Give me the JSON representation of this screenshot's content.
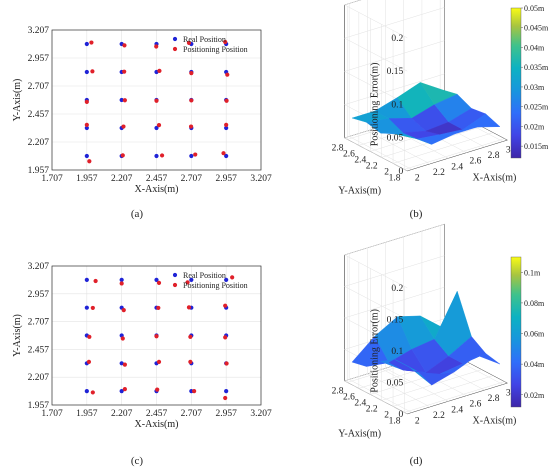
{
  "chart_data": [
    {
      "id": "a",
      "type": "scatter",
      "caption": "(a)",
      "xlabel": "X-Axis(m)",
      "ylabel": "Y-Axis(m)",
      "xlim": [
        1.707,
        3.207
      ],
      "ylim": [
        1.957,
        3.207
      ],
      "xticks": [
        "1.707",
        "1.957",
        "2.207",
        "2.457",
        "2.707",
        "2.957",
        "3.207"
      ],
      "yticks": [
        "1.957",
        "2.207",
        "2.457",
        "2.707",
        "2.957",
        "3.207"
      ],
      "grid": true,
      "legend_position": "top-right",
      "series": [
        {
          "name": "Real Position",
          "color": "#1f23d6",
          "x": [
            1.957,
            2.207,
            2.457,
            2.707,
            2.957,
            1.957,
            2.207,
            2.457,
            2.707,
            2.957,
            1.957,
            2.207,
            2.457,
            2.707,
            2.957,
            1.957,
            2.207,
            2.457,
            2.707,
            2.957,
            1.957,
            2.207,
            2.457,
            2.707,
            2.957
          ],
          "y": [
            2.082,
            2.082,
            2.082,
            2.082,
            2.082,
            2.332,
            2.332,
            2.332,
            2.332,
            2.332,
            2.582,
            2.582,
            2.582,
            2.582,
            2.582,
            2.832,
            2.832,
            2.832,
            2.832,
            2.832,
            3.082,
            3.082,
            3.082,
            3.082,
            3.082
          ]
        },
        {
          "name": "Positioning Position",
          "color": "#e0202a",
          "x": [
            1.975,
            2.215,
            2.497,
            2.735,
            2.938,
            1.957,
            2.22,
            2.475,
            2.705,
            2.957,
            1.957,
            2.23,
            2.457,
            2.707,
            2.96,
            1.997,
            2.225,
            2.478,
            2.707,
            2.965,
            1.99,
            2.227,
            2.455,
            2.69,
            2.95
          ],
          "y": [
            2.035,
            2.088,
            2.087,
            2.095,
            2.107,
            2.36,
            2.345,
            2.358,
            2.345,
            2.36,
            2.565,
            2.58,
            2.575,
            2.578,
            2.575,
            2.838,
            2.835,
            2.842,
            2.822,
            2.808,
            3.095,
            3.07,
            3.06,
            3.092,
            3.1
          ]
        }
      ]
    },
    {
      "id": "b",
      "type": "surface3d",
      "caption": "(b)",
      "xlabel": "X-Axis(m)",
      "ylabel": "Y-Axis(m)",
      "zlabel": "Positioning Error(m)",
      "x": [
        2.0,
        2.25,
        2.5,
        2.75,
        3.0
      ],
      "y": [
        1.8,
        2.05,
        2.3,
        2.55,
        2.8
      ],
      "z": [
        [
          0.048,
          0.025,
          0.03,
          0.03,
          0.02
        ],
        [
          0.04,
          0.022,
          0.018,
          0.015,
          0.028
        ],
        [
          0.03,
          0.02,
          0.012,
          0.015,
          0.025
        ],
        [
          0.035,
          0.03,
          0.02,
          0.03,
          0.035
        ],
        [
          0.03,
          0.03,
          0.04,
          0.052,
          0.03
        ]
      ],
      "zlim": [
        0,
        0.2
      ],
      "xticks": [
        "2",
        "2.2",
        "2.4",
        "2.6",
        "2.8",
        "3"
      ],
      "yticks": [
        "1.8",
        "2",
        "2.2",
        "2.4",
        "2.6",
        "2.8"
      ],
      "zticks": [
        "0",
        "0.05",
        "0.1",
        "0.15",
        "0.2"
      ],
      "colorbar": {
        "min": 0.012,
        "max": 0.05,
        "ticks": [
          "0.015m",
          "0.02m",
          "0.025m",
          "0.03m",
          "0.035m",
          "0.04m",
          "0.045m",
          "0.05m"
        ]
      }
    },
    {
      "id": "c",
      "type": "scatter",
      "caption": "(c)",
      "xlabel": "X-Axis(m)",
      "ylabel": "Y-Axis(m)",
      "xlim": [
        1.707,
        3.207
      ],
      "ylim": [
        1.957,
        3.207
      ],
      "xticks": [
        "1.707",
        "1.957",
        "2.207",
        "2.457",
        "2.707",
        "2.957",
        "3.207"
      ],
      "yticks": [
        "1.957",
        "2.207",
        "2.457",
        "2.707",
        "2.957",
        "3.207"
      ],
      "grid": true,
      "legend_position": "top-right",
      "series": [
        {
          "name": "Real Position",
          "color": "#1f23d6",
          "x": [
            1.957,
            2.207,
            2.457,
            2.707,
            2.957,
            1.957,
            2.207,
            2.457,
            2.707,
            2.957,
            1.957,
            2.207,
            2.457,
            2.707,
            2.957,
            1.957,
            2.207,
            2.457,
            2.707,
            2.957,
            1.957,
            2.207,
            2.457,
            2.707,
            2.957
          ],
          "y": [
            2.082,
            2.082,
            2.082,
            2.082,
            2.082,
            2.332,
            2.332,
            2.332,
            2.332,
            2.332,
            2.582,
            2.582,
            2.582,
            2.582,
            2.582,
            2.832,
            2.832,
            2.832,
            2.832,
            2.832,
            3.082,
            3.082,
            3.082,
            3.082,
            3.082
          ]
        },
        {
          "name": "Positioning Position",
          "color": "#e0202a",
          "x": [
            2.0,
            2.23,
            2.462,
            2.727,
            2.95,
            1.972,
            2.23,
            2.475,
            2.7,
            2.96,
            1.975,
            2.215,
            2.457,
            2.7,
            2.95,
            2.0,
            2.222,
            2.47,
            2.69,
            2.95,
            2.02,
            2.207,
            2.475,
            2.68,
            3.0
          ],
          "y": [
            2.07,
            2.1,
            2.095,
            2.082,
            2.02,
            2.345,
            2.32,
            2.345,
            2.345,
            2.33,
            2.57,
            2.555,
            2.575,
            2.57,
            2.565,
            2.83,
            2.81,
            2.83,
            2.835,
            2.85,
            3.072,
            3.05,
            3.055,
            3.06,
            3.105
          ]
        }
      ]
    },
    {
      "id": "d",
      "type": "surface3d",
      "caption": "(d)",
      "xlabel": "X-Axis(m)",
      "ylabel": "Y-Axis(m)",
      "zlabel": "Positioning Error(m)",
      "x": [
        2.0,
        2.25,
        2.5,
        2.75,
        3.0
      ],
      "y": [
        1.8,
        2.05,
        2.3,
        2.55,
        2.8
      ],
      "z": [
        [
          0.07,
          0.03,
          0.04,
          0.055,
          0.03
        ],
        [
          0.07,
          0.04,
          0.025,
          0.03,
          0.035
        ],
        [
          0.055,
          0.03,
          0.015,
          0.03,
          0.05
        ],
        [
          0.035,
          0.03,
          0.04,
          0.045,
          0.11
        ],
        [
          0.03,
          0.06,
          0.08,
          0.07,
          0.04
        ]
      ],
      "zlim": [
        0,
        0.2
      ],
      "xticks": [
        "2",
        "2.2",
        "2.4",
        "2.6",
        "2.8",
        "3"
      ],
      "yticks": [
        "1.8",
        "2",
        "2.2",
        "2.4",
        "2.6",
        "2.8"
      ],
      "zticks": [
        "0",
        "0.05",
        "0.1",
        "0.15",
        "0.2"
      ],
      "colorbar": {
        "min": 0.012,
        "max": 0.11,
        "ticks": [
          "0.02m",
          "0.04m",
          "0.06m",
          "0.08m",
          "0.1m"
        ]
      }
    }
  ]
}
